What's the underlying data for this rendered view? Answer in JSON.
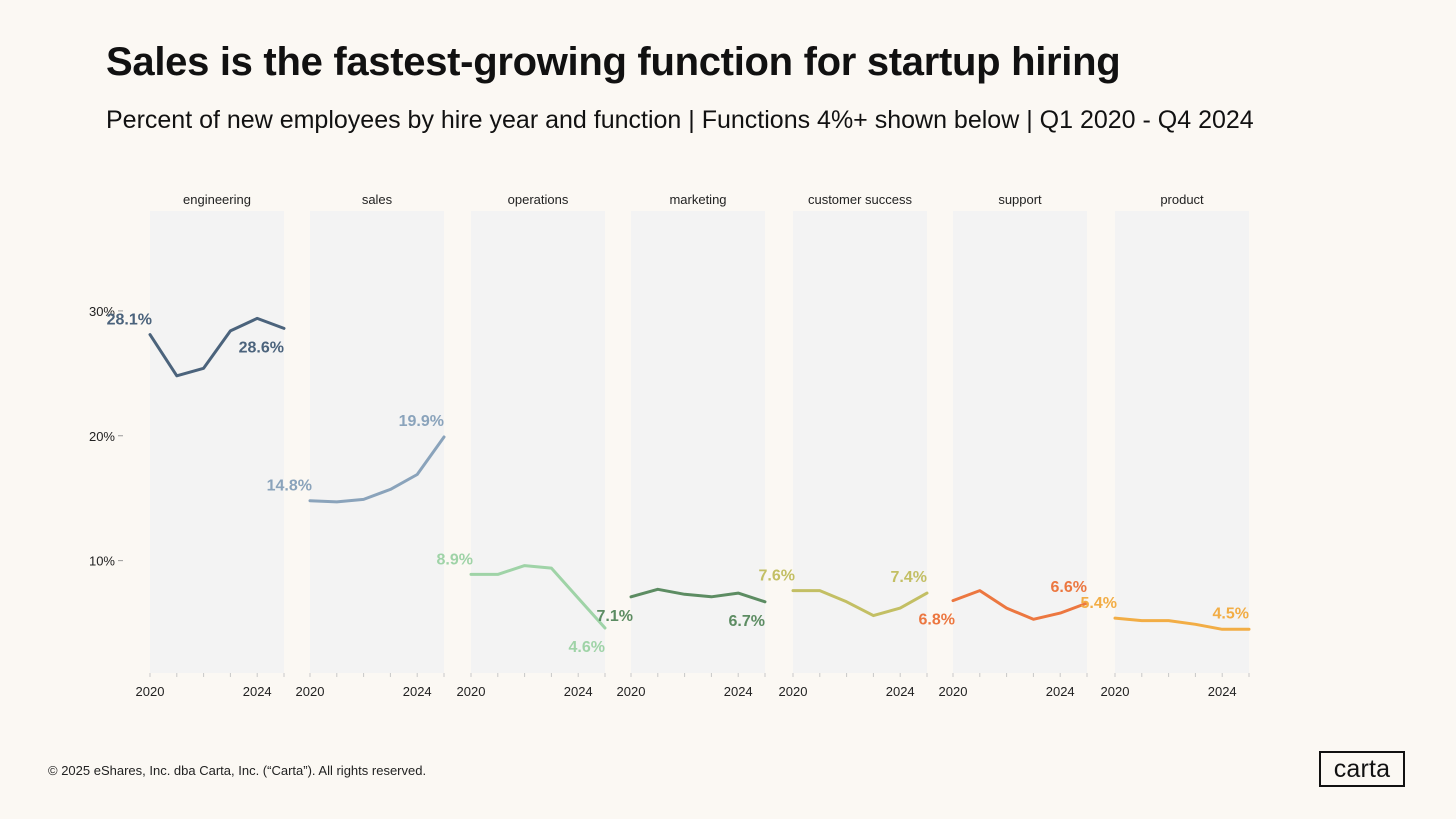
{
  "title": "Sales is the fastest-growing function for startup hiring",
  "subtitle": "Percent of new employees by hire year and function | Functions 4%+ shown below | Q1 2020 - Q4 2024",
  "footer": "© 2025 eShares, Inc. dba Carta, Inc. (“Carta”). All rights reserved.",
  "logo": "carta",
  "chart_data": {
    "type": "line",
    "ylim": [
      1,
      38
    ],
    "y_ticks": [
      10,
      20,
      30
    ],
    "y_tick_labels": [
      "10%",
      "20%",
      "30%"
    ],
    "x_ticks": [
      2020,
      2024
    ],
    "x_range": [
      2020,
      2025
    ],
    "grid": false,
    "panels": [
      {
        "name": "engineering",
        "color": "#4b637c",
        "x": [
          2020,
          2021,
          2022,
          2023,
          2024,
          2025
        ],
        "values": [
          28.1,
          24.8,
          25.4,
          28.4,
          29.4,
          28.6
        ],
        "start_label": "28.1%",
        "end_label": "28.6%"
      },
      {
        "name": "sales",
        "color": "#8aa3bb",
        "x": [
          2020,
          2021,
          2022,
          2023,
          2024,
          2025
        ],
        "values": [
          14.8,
          14.7,
          14.9,
          15.7,
          16.9,
          19.9
        ],
        "start_label": "14.8%",
        "end_label": "19.9%"
      },
      {
        "name": "operations",
        "color": "#9fd3a7",
        "x": [
          2020,
          2021,
          2022,
          2023,
          2024,
          2025
        ],
        "values": [
          8.9,
          8.9,
          9.6,
          9.4,
          7.0,
          4.6
        ],
        "start_label": "8.9%",
        "end_label": "4.6%"
      },
      {
        "name": "marketing",
        "color": "#5c8c62",
        "x": [
          2020,
          2021,
          2022,
          2023,
          2024,
          2025
        ],
        "values": [
          7.1,
          7.7,
          7.3,
          7.1,
          7.4,
          6.7
        ],
        "start_label": "7.1%",
        "end_label": "6.7%"
      },
      {
        "name": "customer success",
        "color": "#c3bf64",
        "x": [
          2020,
          2021,
          2022,
          2023,
          2024,
          2025
        ],
        "values": [
          7.6,
          7.6,
          6.7,
          5.6,
          6.2,
          7.4
        ],
        "start_label": "7.6%",
        "end_label": "7.4%"
      },
      {
        "name": "support",
        "color": "#ec7740",
        "x": [
          2020,
          2021,
          2022,
          2023,
          2024,
          2025
        ],
        "values": [
          6.8,
          7.6,
          6.2,
          5.3,
          5.8,
          6.6
        ],
        "start_label": "6.8%",
        "end_label": "6.6%"
      },
      {
        "name": "product",
        "color": "#f2ad45",
        "x": [
          2020,
          2021,
          2022,
          2023,
          2024,
          2025
        ],
        "values": [
          5.4,
          5.2,
          5.2,
          4.9,
          4.5,
          4.5
        ],
        "start_label": "5.4%",
        "end_label": "4.5%"
      }
    ]
  }
}
